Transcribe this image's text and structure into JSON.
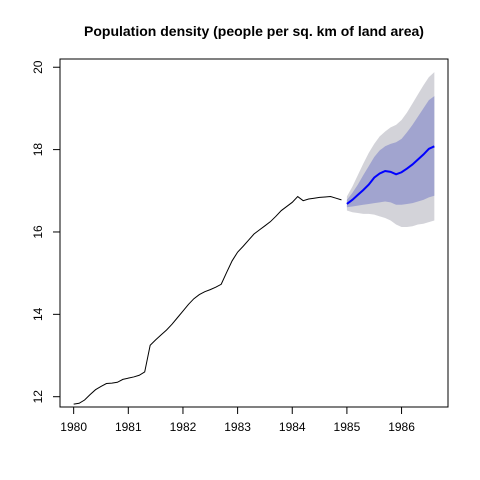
{
  "chart_data": {
    "type": "line",
    "title": "Population density (people per sq. km of land area)",
    "xlabel": "",
    "ylabel": "",
    "xlim": [
      1979.75,
      1986.85
    ],
    "ylim": [
      11.75,
      20.2
    ],
    "x_ticks": [
      {
        "value": 1980,
        "label": "1980"
      },
      {
        "value": 1981,
        "label": "1981"
      },
      {
        "value": 1982,
        "label": "1982"
      },
      {
        "value": 1983,
        "label": "1983"
      },
      {
        "value": 1984,
        "label": "1984"
      },
      {
        "value": 1985,
        "label": "1985"
      },
      {
        "value": 1986,
        "label": "1986"
      }
    ],
    "y_ticks": [
      {
        "value": 12,
        "label": "12"
      },
      {
        "value": 14,
        "label": "14"
      },
      {
        "value": 16,
        "label": "16"
      },
      {
        "value": 18,
        "label": "18"
      },
      {
        "value": 20,
        "label": "20"
      }
    ],
    "grid": false,
    "legend": "none",
    "colors": {
      "history": "#000000",
      "forecast": "#0000ff",
      "band_80": "#a1a4cf",
      "band_95": "#d3d3d9",
      "axis": "#000000"
    },
    "series": [
      {
        "role": "history",
        "x": [
          1980.0,
          1980.1,
          1980.2,
          1980.3,
          1980.4,
          1980.5,
          1980.6,
          1980.7,
          1980.8,
          1980.9,
          1981.0,
          1981.1,
          1981.2,
          1981.3,
          1981.4,
          1981.5,
          1981.6,
          1981.7,
          1981.8,
          1981.9,
          1982.0,
          1982.1,
          1982.2,
          1982.3,
          1982.4,
          1982.5,
          1982.6,
          1982.7,
          1982.8,
          1982.9,
          1983.0,
          1983.1,
          1983.2,
          1983.3,
          1983.4,
          1983.5,
          1983.6,
          1983.7,
          1983.8,
          1983.9,
          1984.0,
          1984.1,
          1984.2,
          1984.3,
          1984.4,
          1984.5,
          1984.6,
          1984.7,
          1984.8,
          1984.9
        ],
        "values": [
          11.82,
          11.84,
          11.92,
          12.05,
          12.17,
          12.25,
          12.32,
          12.33,
          12.35,
          12.42,
          12.45,
          12.48,
          12.52,
          12.6,
          13.25,
          13.38,
          13.5,
          13.62,
          13.76,
          13.92,
          14.08,
          14.24,
          14.38,
          14.48,
          14.55,
          14.6,
          14.66,
          14.73,
          15.02,
          15.3,
          15.51,
          15.65,
          15.8,
          15.95,
          16.05,
          16.15,
          16.25,
          16.38,
          16.52,
          16.62,
          16.72,
          16.86,
          16.76,
          16.8,
          16.82,
          16.84,
          16.85,
          16.86,
          16.82,
          16.78
        ]
      },
      {
        "role": "forecast",
        "x": [
          1985.0,
          1985.1,
          1985.2,
          1985.3,
          1985.4,
          1985.5,
          1985.6,
          1985.7,
          1985.8,
          1985.9,
          1986.0,
          1986.1,
          1986.2,
          1986.3,
          1986.4,
          1986.5,
          1986.6
        ],
        "values": [
          16.68,
          16.78,
          16.9,
          17.02,
          17.15,
          17.32,
          17.42,
          17.48,
          17.46,
          17.4,
          17.45,
          17.54,
          17.64,
          17.76,
          17.88,
          18.02,
          18.08
        ],
        "lower_80": [
          16.6,
          16.62,
          16.64,
          16.66,
          16.68,
          16.7,
          16.72,
          16.74,
          16.72,
          16.66,
          16.66,
          16.68,
          16.7,
          16.74,
          16.78,
          16.84,
          16.88
        ],
        "upper_80": [
          16.78,
          16.95,
          17.15,
          17.38,
          17.6,
          17.82,
          17.98,
          18.08,
          18.14,
          18.18,
          18.26,
          18.42,
          18.6,
          18.8,
          19.0,
          19.2,
          19.3
        ],
        "lower_95": [
          16.52,
          16.48,
          16.46,
          16.44,
          16.44,
          16.42,
          16.38,
          16.34,
          16.28,
          16.18,
          16.12,
          16.12,
          16.14,
          16.18,
          16.2,
          16.24,
          16.28
        ],
        "upper_95": [
          16.86,
          17.1,
          17.38,
          17.66,
          17.92,
          18.14,
          18.32,
          18.44,
          18.54,
          18.6,
          18.72,
          18.9,
          19.12,
          19.34,
          19.56,
          19.76,
          19.88
        ]
      }
    ]
  }
}
